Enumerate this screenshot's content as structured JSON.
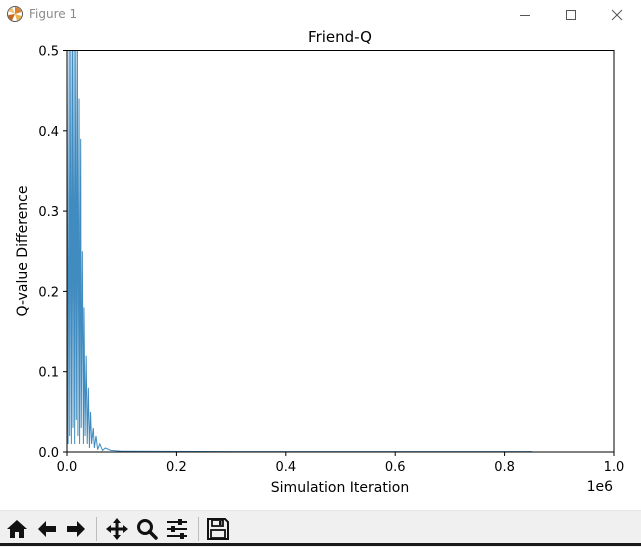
{
  "window": {
    "title": "Figure 1",
    "icon": "matplotlib-icon",
    "controls": [
      "minimize-icon",
      "maximize-icon",
      "close-icon"
    ]
  },
  "toolbar": {
    "buttons": [
      {
        "name": "home-button",
        "icon": "home-icon"
      },
      {
        "name": "back-button",
        "icon": "arrow-left-icon"
      },
      {
        "name": "forward-button",
        "icon": "arrow-right-icon"
      },
      {
        "name": "pan-button",
        "icon": "move-icon"
      },
      {
        "name": "zoom-button",
        "icon": "magnifier-icon"
      },
      {
        "name": "configure-subplots-button",
        "icon": "sliders-icon"
      },
      {
        "name": "save-button",
        "icon": "floppy-disk-icon"
      }
    ]
  },
  "chart_data": {
    "type": "line",
    "title": "Friend-Q",
    "xlabel": "Simulation Iteration",
    "ylabel": "Q-value Difference",
    "x_offset_text": "1e6",
    "xlim": [
      0,
      1.0
    ],
    "ylim": [
      0,
      0.5
    ],
    "x_ticks": [
      0.0,
      0.2,
      0.4,
      0.6,
      0.8,
      1.0
    ],
    "x_tick_labels": [
      "0.0",
      "0.2",
      "0.4",
      "0.6",
      "0.8",
      "1.0"
    ],
    "y_ticks": [
      0.0,
      0.1,
      0.2,
      0.3,
      0.4,
      0.5
    ],
    "y_tick_labels": [
      "0.0",
      "0.1",
      "0.2",
      "0.3",
      "0.4",
      "0.5"
    ],
    "grid": false,
    "line_color": "#1f77b4",
    "series": [
      {
        "x": [
          0.0,
          0.002,
          0.004,
          0.005,
          0.007,
          0.008,
          0.01,
          0.011,
          0.013,
          0.014,
          0.016,
          0.017,
          0.019,
          0.02,
          0.022,
          0.023,
          0.025,
          0.026,
          0.028,
          0.03,
          0.031,
          0.033,
          0.035,
          0.037,
          0.039,
          0.041,
          0.043,
          0.045,
          0.048,
          0.05,
          0.053,
          0.056,
          0.06,
          0.065,
          0.07,
          0.08,
          0.1,
          0.3,
          0.5,
          0.7,
          0.85
        ],
        "y": [
          0.5,
          0.01,
          0.5,
          0.02,
          0.5,
          0.01,
          0.5,
          0.03,
          0.5,
          0.01,
          0.5,
          0.04,
          0.5,
          0.02,
          0.44,
          0.01,
          0.39,
          0.03,
          0.25,
          0.01,
          0.18,
          0.02,
          0.12,
          0.01,
          0.08,
          0.005,
          0.05,
          0.01,
          0.03,
          0.005,
          0.02,
          0.003,
          0.01,
          0.002,
          0.005,
          0.002,
          0.001,
          0.0005,
          0.0005,
          0.0005,
          0.0005
        ]
      }
    ]
  }
}
